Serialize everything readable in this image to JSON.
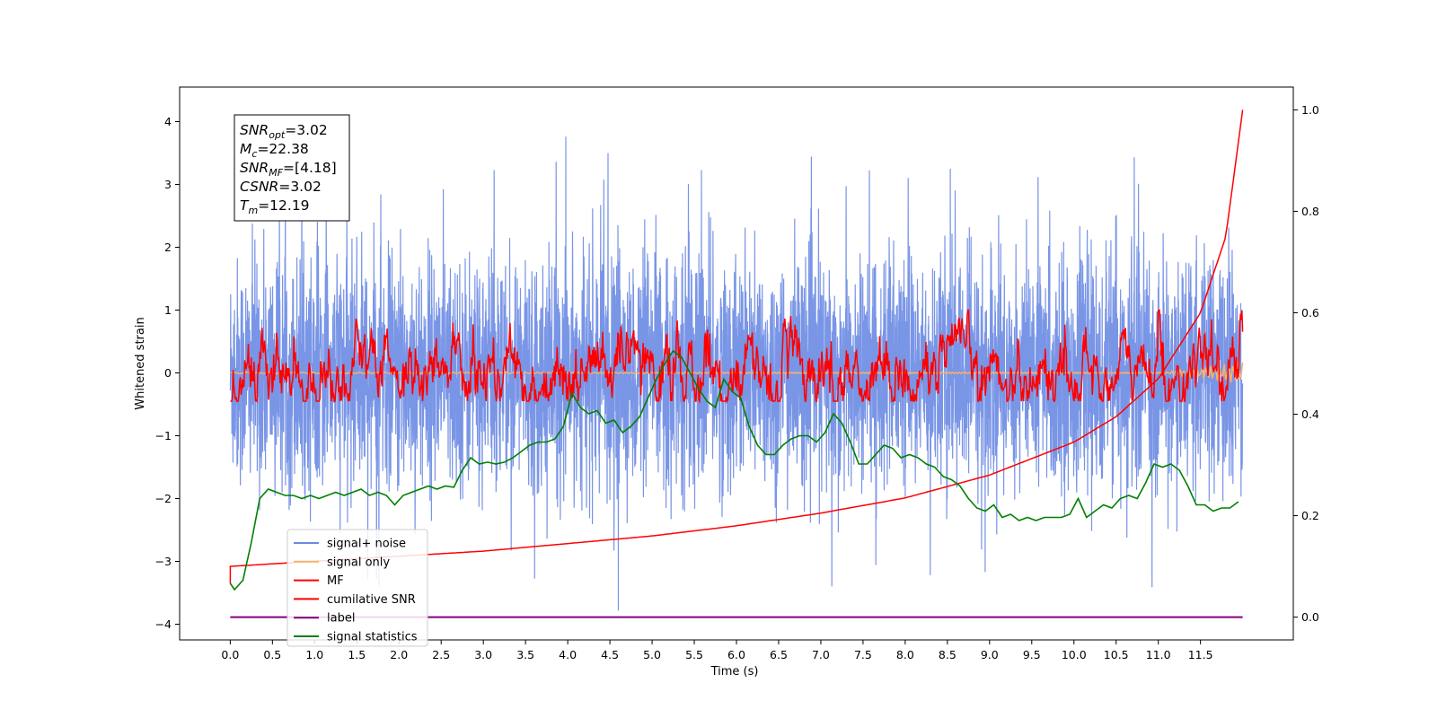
{
  "chart_data": {
    "type": "line",
    "xlabel": "Time (s)",
    "ylabel": "Whitened strain",
    "x_ticks": [
      "0.0",
      "0.5",
      "1.0",
      "1.5",
      "2.0",
      "2.5",
      "3.0",
      "3.5",
      "4.0",
      "4.5",
      "5.0",
      "5.5",
      "6.0",
      "6.5",
      "7.0",
      "7.5",
      "8.0",
      "8.5",
      "9.0",
      "9.5",
      "10.0",
      "10.5",
      "11.0",
      "11.5"
    ],
    "y_ticks_left": [
      "−4",
      "−3",
      "−2",
      "−1",
      "0",
      "1",
      "2",
      "3",
      "4"
    ],
    "y_ticks_right": [
      "0.0",
      "0.2",
      "0.4",
      "0.6",
      "0.8",
      "1.0"
    ],
    "xlim": [
      -0.6,
      12.6
    ],
    "ylim_left": [
      -4.25,
      4.55
    ],
    "ylim_right": [
      -0.045,
      1.045
    ],
    "annotation": [
      {
        "var": "SNR",
        "sub": "opt",
        "value": "=3.02"
      },
      {
        "var": "M",
        "sub": "c",
        "value": "=22.38"
      },
      {
        "var": "SNR",
        "sub": "MF",
        "value": "=[4.18]"
      },
      {
        "var": "CSNR",
        "sub": "",
        "value": "=3.02"
      },
      {
        "var": "T",
        "sub": "m",
        "value": "=12.19"
      }
    ],
    "legend": {
      "placement": "lower-left",
      "entries": [
        {
          "label": "signal+ noise",
          "color": "#6a89e3"
        },
        {
          "label": "signal only",
          "color": "#f7b36b"
        },
        {
          "label": "MF",
          "color": "#ff0000"
        },
        {
          "label": "cumilative SNR",
          "color": "#ff0000"
        },
        {
          "label": "label",
          "color": "#800080"
        },
        {
          "label": "signal statistics",
          "color": "#008000"
        }
      ]
    },
    "series": [
      {
        "name": "signal+ noise",
        "axis": "left",
        "color": "#6a89e3",
        "style": "noise band, roughly N(0, 0.9) clipped to about [-3.8, 4.2]"
      },
      {
        "name": "signal only",
        "axis": "left",
        "color": "#f7b36b",
        "y": 0
      },
      {
        "name": "MF",
        "axis": "left",
        "color": "#ff0000",
        "style": "filtered noise around 0, range about [-0.45, 1.0]",
        "peaks": [
          {
            "x": 1.5,
            "y": 1.0
          },
          {
            "x": 5.3,
            "y": 0.92
          },
          {
            "x": 6.0,
            "y": 0.8
          },
          {
            "x": 11.0,
            "y": 0.8
          },
          {
            "x": 12.0,
            "y": 0.6
          }
        ]
      },
      {
        "name": "cumilative SNR",
        "axis": "right",
        "color": "#ff0000",
        "x": [
          0.0,
          1.0,
          2.0,
          3.0,
          4.0,
          5.0,
          6.0,
          7.0,
          8.0,
          9.0,
          10.0,
          10.5,
          11.0,
          11.5,
          11.8,
          12.0
        ],
        "y": [
          0.1,
          0.11,
          0.12,
          0.13,
          0.145,
          0.16,
          0.18,
          0.205,
          0.235,
          0.28,
          0.345,
          0.395,
          0.47,
          0.6,
          0.75,
          1.0
        ]
      },
      {
        "name": "label",
        "axis": "right",
        "color": "#800080",
        "x": [
          0.0,
          12.0
        ],
        "y": [
          0.0,
          0.0
        ]
      },
      {
        "name": "signal statistics",
        "axis": "left",
        "color": "#008000",
        "x": [
          0.0,
          0.05,
          0.15,
          0.25,
          0.35,
          0.45,
          0.55,
          0.65,
          0.75,
          0.85,
          0.95,
          1.05,
          1.15,
          1.25,
          1.35,
          1.45,
          1.55,
          1.65,
          1.75,
          1.85,
          1.95,
          2.05,
          2.15,
          2.25,
          2.35,
          2.45,
          2.55,
          2.65,
          2.75,
          2.85,
          2.95,
          3.05,
          3.15,
          3.25,
          3.35,
          3.45,
          3.55,
          3.65,
          3.75,
          3.85,
          3.95,
          4.05,
          4.15,
          4.25,
          4.35,
          4.45,
          4.55,
          4.65,
          4.75,
          4.85,
          4.95,
          5.05,
          5.15,
          5.25,
          5.35,
          5.45,
          5.55,
          5.65,
          5.75,
          5.85,
          5.95,
          6.05,
          6.15,
          6.25,
          6.35,
          6.45,
          6.55,
          6.65,
          6.75,
          6.85,
          6.95,
          7.05,
          7.15,
          7.25,
          7.35,
          7.45,
          7.55,
          7.65,
          7.75,
          7.85,
          7.95,
          8.05,
          8.15,
          8.25,
          8.35,
          8.45,
          8.55,
          8.65,
          8.75,
          8.85,
          8.95,
          9.05,
          9.15,
          9.25,
          9.35,
          9.45,
          9.55,
          9.65,
          9.75,
          9.85,
          9.95,
          10.05,
          10.15,
          10.25,
          10.35,
          10.45,
          10.55,
          10.65,
          10.75,
          10.85,
          10.95,
          11.05,
          11.15,
          11.25,
          11.35,
          11.45,
          11.55,
          11.65,
          11.75,
          11.85,
          11.95
        ],
        "y": [
          -3.35,
          -3.45,
          -3.3,
          -2.7,
          -2.0,
          -1.85,
          -1.9,
          -1.95,
          -1.95,
          -2.0,
          -1.95,
          -2.0,
          -1.95,
          -1.9,
          -1.95,
          -1.9,
          -1.85,
          -1.95,
          -1.9,
          -1.95,
          -2.1,
          -1.95,
          -1.9,
          -1.85,
          -1.8,
          -1.85,
          -1.8,
          -1.82,
          -1.55,
          -1.35,
          -1.45,
          -1.42,
          -1.45,
          -1.42,
          -1.35,
          -1.25,
          -1.15,
          -1.1,
          -1.1,
          -1.05,
          -0.85,
          -0.32,
          -0.55,
          -0.65,
          -0.6,
          -0.8,
          -0.75,
          -0.95,
          -0.85,
          -0.7,
          -0.4,
          -0.1,
          0.15,
          0.35,
          0.25,
          0.0,
          -0.25,
          -0.45,
          -0.55,
          -0.1,
          -0.3,
          -0.4,
          -0.85,
          -1.15,
          -1.3,
          -1.3,
          -1.15,
          -1.05,
          -1.0,
          -1.0,
          -1.1,
          -0.95,
          -0.65,
          -0.8,
          -1.1,
          -1.45,
          -1.45,
          -1.3,
          -1.15,
          -1.2,
          -1.35,
          -1.3,
          -1.35,
          -1.45,
          -1.5,
          -1.65,
          -1.7,
          -1.8,
          -2.0,
          -2.15,
          -2.2,
          -2.1,
          -2.3,
          -2.25,
          -2.35,
          -2.3,
          -2.35,
          -2.3,
          -2.3,
          -2.3,
          -2.25,
          -2.0,
          -2.3,
          -2.2,
          -2.1,
          -2.15,
          -2.0,
          -1.95,
          -2.0,
          -1.75,
          -1.45,
          -1.5,
          -1.45,
          -1.55,
          -1.8,
          -2.1,
          -2.1,
          -2.2,
          -2.15,
          -2.15,
          -2.05
        ]
      }
    ]
  }
}
